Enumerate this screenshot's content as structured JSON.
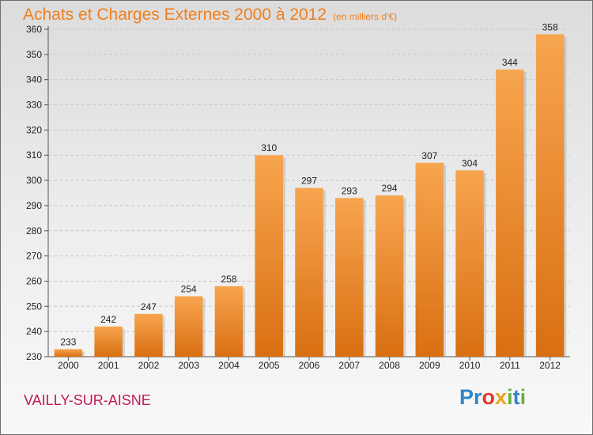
{
  "header": {
    "title": "Achats et Charges Externes 2000 à 2012",
    "subtitle": "(en milliers d'€)"
  },
  "footer": {
    "location": "VAILLY-SUR-AISNE",
    "brand_letters": [
      {
        "char": "P",
        "color": "#2f86c8"
      },
      {
        "char": "r",
        "color": "#2f86c8"
      },
      {
        "char": "o",
        "color": "#e23a2a"
      },
      {
        "char": "x",
        "color": "#f0a11b"
      },
      {
        "char": "i",
        "color": "#6ab23d"
      },
      {
        "char": "t",
        "color": "#2f86c8"
      },
      {
        "char": "i",
        "color": "#6ab23d"
      }
    ]
  },
  "chart_data": {
    "type": "bar",
    "title": "Achats et Charges Externes 2000 à 2012",
    "subtitle": "(en milliers d'€)",
    "categories": [
      "2000",
      "2001",
      "2002",
      "2003",
      "2004",
      "2005",
      "2006",
      "2007",
      "2008",
      "2009",
      "2010",
      "2011",
      "2012"
    ],
    "values": [
      233,
      242,
      247,
      254,
      258,
      310,
      297,
      293,
      294,
      307,
      304,
      344,
      358
    ],
    "ylim": [
      230,
      360
    ],
    "yticks": [
      230,
      240,
      250,
      260,
      270,
      280,
      290,
      300,
      310,
      320,
      330,
      340,
      350,
      360
    ],
    "grid": true,
    "bar_color_light": "#f7a54f",
    "bar_color_dark": "#d96f12",
    "data_labels": true
  }
}
